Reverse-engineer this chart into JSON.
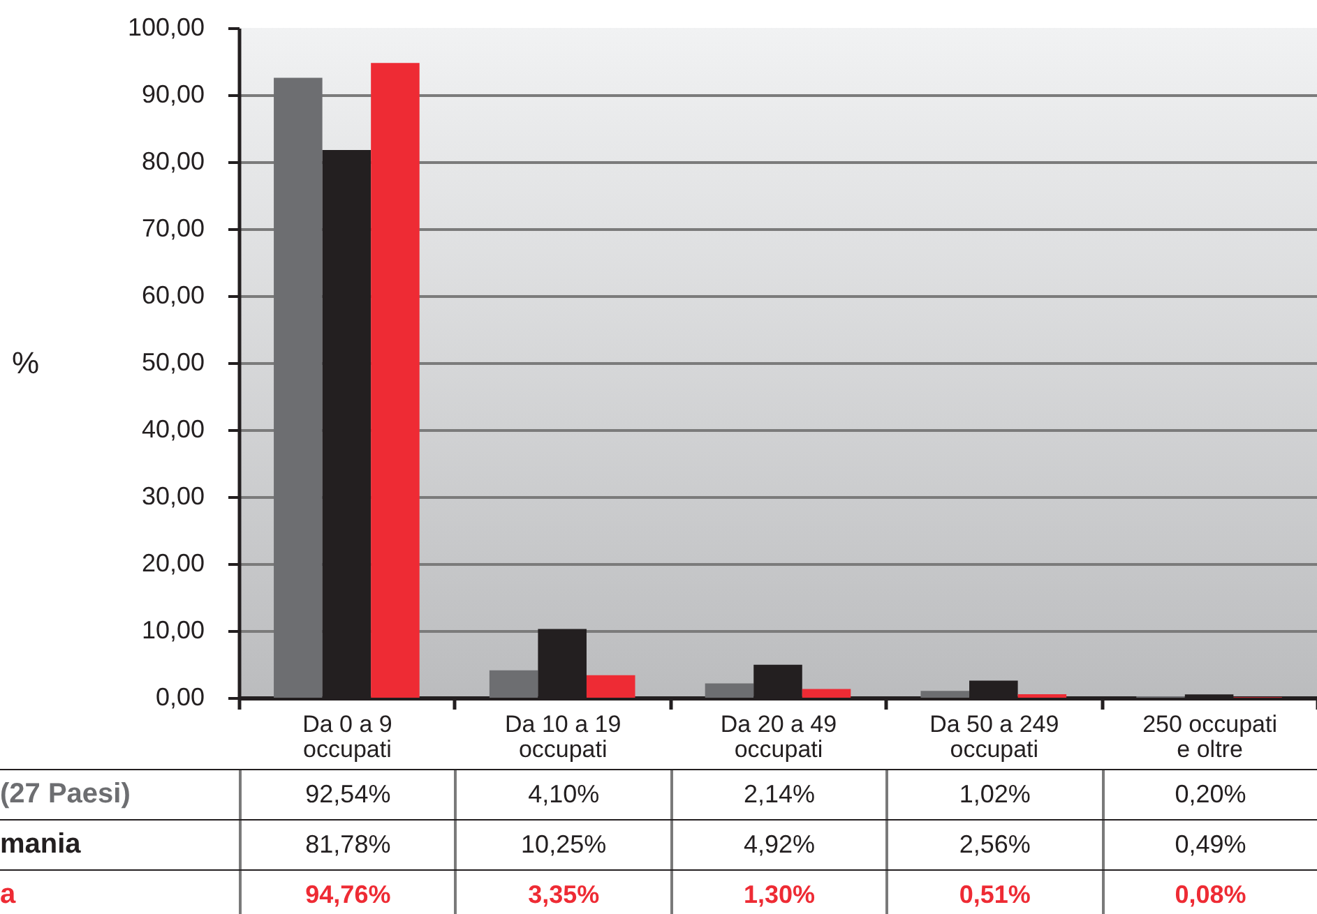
{
  "chart_data": {
    "type": "bar",
    "ylabel": "%",
    "categories": [
      "Da 0 a 9 occupati",
      "Da 10 a 19 occupati",
      "Da 20 a 49 occupati",
      "Da 50 a 249 occupati",
      "250 occupati e oltre"
    ],
    "series": [
      {
        "name": "(27 Paesi)",
        "color": "#6d6e71",
        "values": [
          92.54,
          4.1,
          2.14,
          1.02,
          0.2
        ],
        "value_labels": [
          "92,54%",
          "4,10%",
          "2,14%",
          "1,02%",
          "0,20%"
        ]
      },
      {
        "name": "mania",
        "color": "#231f20",
        "values": [
          81.78,
          10.25,
          4.92,
          2.56,
          0.49
        ],
        "value_labels": [
          "81,78%",
          "10,25%",
          "4,92%",
          "2,56%",
          "0,49%"
        ]
      },
      {
        "name": "a",
        "color": "#ee2b34",
        "values": [
          94.76,
          3.35,
          1.3,
          0.51,
          0.08
        ],
        "value_labels": [
          "94,76%",
          "3,35%",
          "1,30%",
          "0,51%",
          "0,08%"
        ]
      }
    ],
    "ylim": [
      0,
      100
    ],
    "yticks": [
      {
        "value": 0,
        "label": "0,00"
      },
      {
        "value": 10,
        "label": "10,00"
      },
      {
        "value": 20,
        "label": "20,00"
      },
      {
        "value": 30,
        "label": "30,00"
      },
      {
        "value": 40,
        "label": "40,00"
      },
      {
        "value": 50,
        "label": "50,00"
      },
      {
        "value": 60,
        "label": "60,00"
      },
      {
        "value": 70,
        "label": "70,00"
      },
      {
        "value": 80,
        "label": "80,00"
      },
      {
        "value": 90,
        "label": "90,00"
      },
      {
        "value": 100,
        "label": "100,00"
      }
    ],
    "grid": "y"
  }
}
